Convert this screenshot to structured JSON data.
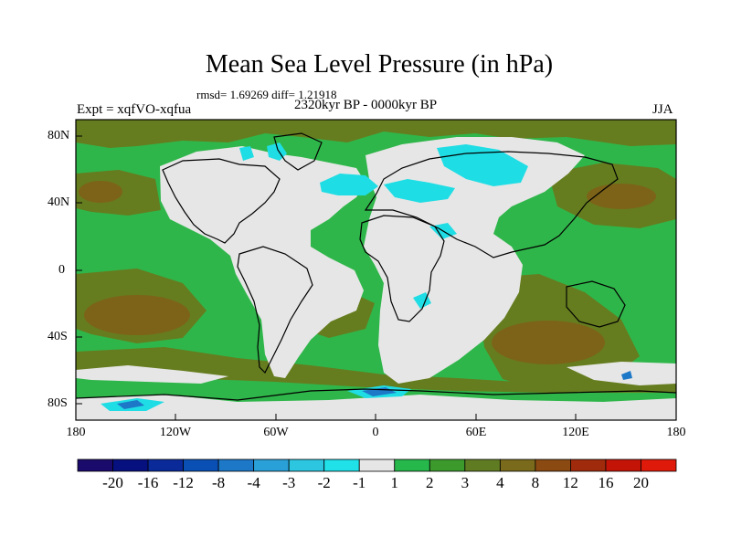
{
  "title": "Mean Sea Level Pressure (in hPa)",
  "stats": "rmsd= 1.69269 diff= 1.21918",
  "subtitle": "2320kyr BP - 0000kyr BP",
  "left_label": "Expt = xqfVO-xqfua",
  "right_label": "JJA",
  "y_ticks": [
    "80N",
    "40N",
    "0",
    "40S",
    "80S"
  ],
  "x_ticks": [
    "180",
    "120W",
    "60W",
    "0",
    "60E",
    "120E",
    "180"
  ],
  "colorbar_labels": [
    "-20",
    "-16",
    "-12",
    "-8",
    "-4",
    "-3",
    "-2",
    "-1",
    "1",
    "2",
    "3",
    "4",
    "8",
    "12",
    "16",
    "20"
  ],
  "colorbar_colors": [
    "#1a0a6b",
    "#06107e",
    "#0a2a9a",
    "#0a4fb4",
    "#1e78c8",
    "#2aa0d8",
    "#2cc6e0",
    "#20e0e8",
    "#e6e6e6",
    "#26b84a",
    "#3c9a2c",
    "#607c22",
    "#7a6a1c",
    "#8a4a12",
    "#a02a0c",
    "#c41408",
    "#e01a0a"
  ],
  "colors": {
    "ocean_green": "#2fb64a",
    "olive": "#657d1f",
    "brown": "#7d6318",
    "light_gray": "#e6e6e6",
    "cyan": "#1fdde4"
  }
}
